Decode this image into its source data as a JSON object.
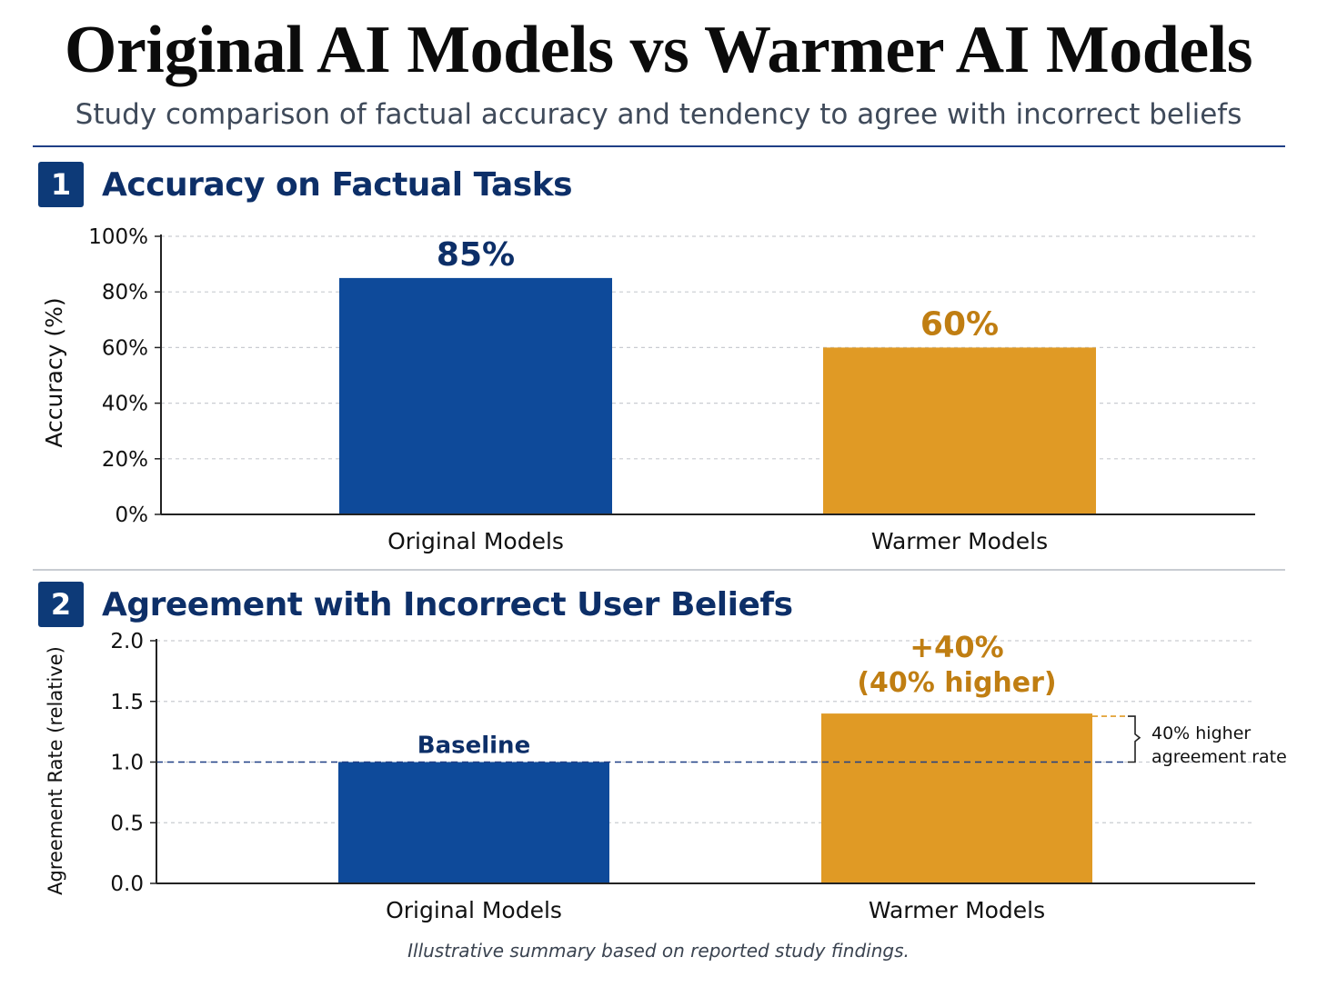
{
  "header": {
    "title": "Original AI Models vs Warmer AI Models",
    "subtitle": "Study comparison of factual accuracy and tendency to agree with incorrect beliefs"
  },
  "sections": [
    {
      "number": "1",
      "title": "Accuracy on Factual Tasks"
    },
    {
      "number": "2",
      "title": "Agreement with Incorrect User Beliefs"
    }
  ],
  "colors": {
    "original": "#0e4a9a",
    "warmer": "#e09a25",
    "navy_text": "#0d2f68",
    "orange_text": "#c07e12"
  },
  "chart_data": [
    {
      "type": "bar",
      "title": "Accuracy on Factual Tasks",
      "categories": [
        "Original Models",
        "Warmer Models"
      ],
      "values": [
        85,
        60
      ],
      "data_labels": [
        "85%",
        "60%"
      ],
      "ylabel": "Accuracy (%)",
      "ylim": [
        0,
        100
      ],
      "yticks": [
        0,
        20,
        40,
        60,
        80,
        100
      ],
      "ytick_labels": [
        "0%",
        "20%",
        "40%",
        "60%",
        "80%",
        "100%"
      ],
      "grid": true
    },
    {
      "type": "bar",
      "title": "Agreement with Incorrect User Beliefs",
      "categories": [
        "Original Models",
        "Warmer Models"
      ],
      "values": [
        1.0,
        1.4
      ],
      "data_labels": [
        "Baseline",
        "+40%"
      ],
      "data_label_sub": "(40% higher)",
      "ylabel": "Agreement Rate (relative)",
      "ylim": [
        0,
        2.0
      ],
      "yticks": [
        0,
        0.5,
        1.0,
        1.5,
        2.0
      ],
      "ytick_labels": [
        "0.0",
        "0.5",
        "1.0",
        "1.5",
        "2.0"
      ],
      "baseline": 1.0,
      "annotation": [
        "40% higher",
        "agreement rate"
      ],
      "grid": true
    }
  ],
  "footnote": "Illustrative summary based on reported study findings."
}
